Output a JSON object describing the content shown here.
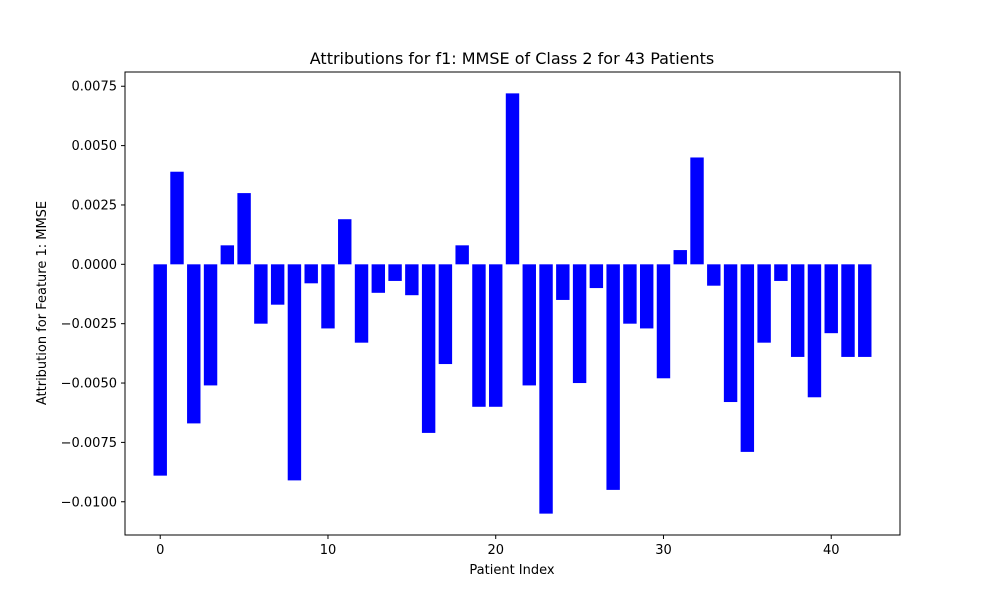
{
  "chart_data": {
    "type": "bar",
    "title": "Attributions for f1: MMSE of Class 2 for 43 Patients",
    "xlabel": "Patient Index",
    "ylabel": "Attribution for Feature 1: MMSE",
    "bar_color": "#0000ff",
    "xlim": [
      -2.1,
      44.1
    ],
    "ylim": [
      -0.0114,
      0.0081
    ],
    "xticks": [
      0,
      10,
      20,
      30,
      40
    ],
    "xtick_labels": [
      "0",
      "10",
      "20",
      "30",
      "40"
    ],
    "yticks": [
      -0.01,
      -0.0075,
      -0.005,
      -0.0025,
      0.0,
      0.0025,
      0.005,
      0.0075
    ],
    "ytick_labels": [
      "−0.0100",
      "−0.0075",
      "−0.0050",
      "−0.0025",
      "0.0000",
      "0.0025",
      "0.0050",
      "0.0075"
    ],
    "grid": false,
    "legend": null,
    "categories": [
      0,
      1,
      2,
      3,
      4,
      5,
      6,
      7,
      8,
      9,
      10,
      11,
      12,
      13,
      14,
      15,
      16,
      17,
      18,
      19,
      20,
      21,
      22,
      23,
      24,
      25,
      26,
      27,
      28,
      29,
      30,
      31,
      32,
      33,
      34,
      35,
      36,
      37,
      38,
      39,
      40,
      41,
      42
    ],
    "values": [
      -0.0089,
      0.0039,
      -0.0067,
      -0.0051,
      0.0008,
      0.003,
      -0.0025,
      -0.0017,
      -0.0091,
      -0.0008,
      -0.0027,
      0.0019,
      -0.0033,
      -0.0012,
      -0.0007,
      -0.0013,
      -0.0071,
      -0.0042,
      0.0008,
      -0.006,
      -0.006,
      0.0072,
      -0.0051,
      -0.0105,
      -0.0015,
      -0.005,
      -0.001,
      -0.0095,
      -0.0025,
      -0.0027,
      -0.0048,
      0.0006,
      0.0045,
      -0.0009,
      -0.0058,
      -0.0079,
      -0.0033,
      -0.0007,
      -0.0039,
      -0.0056,
      -0.0029,
      -0.0039,
      -0.0039
    ]
  }
}
